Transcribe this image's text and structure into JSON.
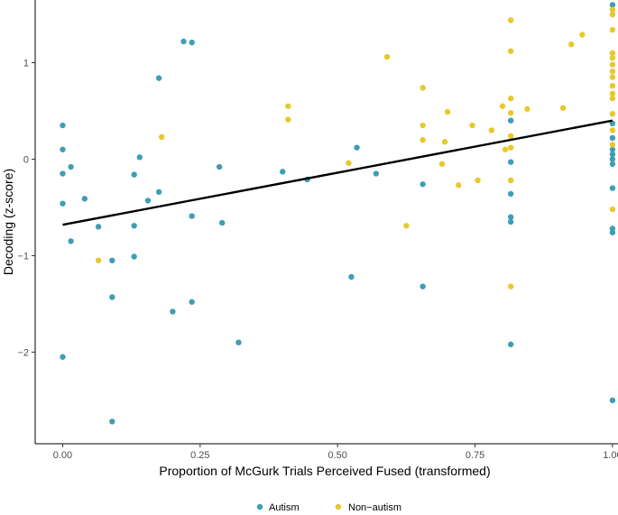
{
  "chart_data": {
    "type": "scatter",
    "title": "",
    "xlabel": "Proportion of McGurk Trials Perceived Fused (transformed)",
    "ylabel": "Decoding (z-score)",
    "xlim": [
      -0.05,
      1.01
    ],
    "ylim": [
      -2.95,
      1.65
    ],
    "x_ticks": [
      "0.00",
      "0.25",
      "0.50",
      "0.75",
      "1.00"
    ],
    "y_ticks": [
      "-2",
      "-1",
      "0",
      "1"
    ],
    "grid": false,
    "legend_position": "bottom",
    "regression_line": {
      "x": [
        0.0,
        1.0
      ],
      "y": [
        -0.68,
        0.4
      ],
      "color": "#000000"
    },
    "series": [
      {
        "name": "Autism",
        "color": "#3f9db6",
        "points": [
          [
            0.0,
            0.35
          ],
          [
            0.0,
            0.1
          ],
          [
            0.0,
            -0.15
          ],
          [
            0.0,
            -0.46
          ],
          [
            0.0,
            -2.05
          ],
          [
            0.015,
            -0.08
          ],
          [
            0.015,
            -0.85
          ],
          [
            0.04,
            -0.41
          ],
          [
            0.065,
            -0.7
          ],
          [
            0.09,
            -1.05
          ],
          [
            0.09,
            -1.43
          ],
          [
            0.09,
            -2.72
          ],
          [
            0.13,
            -0.16
          ],
          [
            0.13,
            -0.69
          ],
          [
            0.13,
            -1.01
          ],
          [
            0.14,
            0.02
          ],
          [
            0.155,
            -0.43
          ],
          [
            0.175,
            0.84
          ],
          [
            0.175,
            -0.34
          ],
          [
            0.2,
            -1.58
          ],
          [
            0.22,
            1.22
          ],
          [
            0.235,
            1.21
          ],
          [
            0.235,
            -0.59
          ],
          [
            0.235,
            -1.48
          ],
          [
            0.285,
            -0.08
          ],
          [
            0.29,
            -0.66
          ],
          [
            0.32,
            -1.9
          ],
          [
            0.4,
            -0.13
          ],
          [
            0.445,
            -0.21
          ],
          [
            0.525,
            -1.22
          ],
          [
            0.535,
            0.12
          ],
          [
            0.57,
            -0.15
          ],
          [
            0.655,
            -0.26
          ],
          [
            0.655,
            -1.32
          ],
          [
            0.815,
            0.4
          ],
          [
            0.815,
            -0.03
          ],
          [
            0.815,
            -0.36
          ],
          [
            0.815,
            -0.6
          ],
          [
            0.815,
            -0.65
          ],
          [
            0.815,
            -1.92
          ],
          [
            1.0,
            1.6
          ],
          [
            1.0,
            0.37
          ],
          [
            1.0,
            0.22
          ],
          [
            1.0,
            0.1
          ],
          [
            1.0,
            0.05
          ],
          [
            1.0,
            0.0
          ],
          [
            1.0,
            -0.05
          ],
          [
            1.0,
            -0.3
          ],
          [
            1.0,
            -0.72
          ],
          [
            1.0,
            -0.76
          ],
          [
            1.0,
            -2.5
          ]
        ]
      },
      {
        "name": "Non−autism",
        "color": "#e8c82d",
        "points": [
          [
            0.065,
            -1.05
          ],
          [
            0.18,
            0.23
          ],
          [
            0.41,
            0.55
          ],
          [
            0.41,
            0.41
          ],
          [
            0.52,
            -0.04
          ],
          [
            0.59,
            1.06
          ],
          [
            0.625,
            -0.69
          ],
          [
            0.655,
            0.74
          ],
          [
            0.655,
            0.35
          ],
          [
            0.655,
            0.2
          ],
          [
            0.69,
            -0.05
          ],
          [
            0.695,
            0.18
          ],
          [
            0.7,
            0.49
          ],
          [
            0.72,
            -0.27
          ],
          [
            0.745,
            0.35
          ],
          [
            0.755,
            -0.22
          ],
          [
            0.78,
            0.3
          ],
          [
            0.8,
            0.55
          ],
          [
            0.805,
            0.1
          ],
          [
            0.815,
            1.44
          ],
          [
            0.815,
            1.12
          ],
          [
            0.815,
            0.63
          ],
          [
            0.815,
            0.48
          ],
          [
            0.815,
            0.24
          ],
          [
            0.815,
            0.12
          ],
          [
            0.815,
            -0.22
          ],
          [
            0.815,
            -1.32
          ],
          [
            0.845,
            0.52
          ],
          [
            0.91,
            0.53
          ],
          [
            0.925,
            1.19
          ],
          [
            0.945,
            1.29
          ],
          [
            1.0,
            1.55
          ],
          [
            1.0,
            1.5
          ],
          [
            1.0,
            1.34
          ],
          [
            1.0,
            1.1
          ],
          [
            1.0,
            1.05
          ],
          [
            1.0,
            0.98
          ],
          [
            1.0,
            0.91
          ],
          [
            1.0,
            0.85
          ],
          [
            1.0,
            0.76
          ],
          [
            1.0,
            0.68
          ],
          [
            1.0,
            0.63
          ],
          [
            1.0,
            0.47
          ],
          [
            1.0,
            0.3
          ],
          [
            1.0,
            0.15
          ],
          [
            1.0,
            -0.52
          ]
        ]
      }
    ]
  }
}
